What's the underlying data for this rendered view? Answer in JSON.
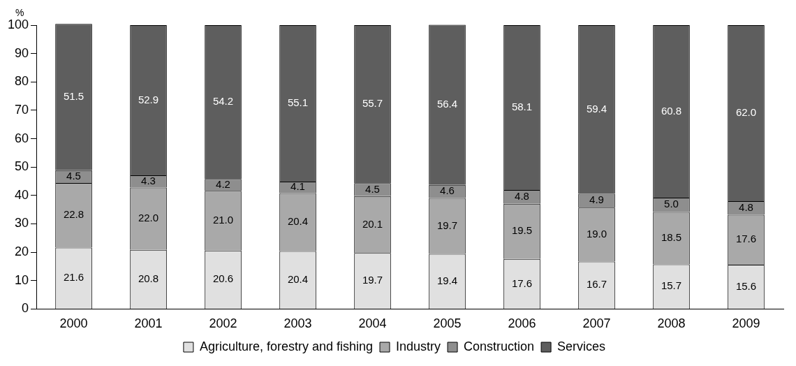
{
  "chart_data": {
    "type": "bar",
    "stacked": true,
    "ylabel": "%",
    "categories": [
      "2000",
      "2001",
      "2002",
      "2003",
      "2004",
      "2005",
      "2006",
      "2007",
      "2008",
      "2009"
    ],
    "series": [
      {
        "name": "Agriculture, forestry and fishing",
        "color": "#e0e0e0",
        "values": [
          21.6,
          20.8,
          20.6,
          20.4,
          19.7,
          19.4,
          17.6,
          16.7,
          15.7,
          15.6
        ],
        "value_labels": [
          "21.6",
          "20.8",
          "20.6",
          "20.4",
          "19.7",
          "19.4",
          "17.6",
          "16.7",
          "15.7",
          "15.6"
        ]
      },
      {
        "name": "Industry",
        "color": "#a9a9a9",
        "values": [
          22.8,
          22.0,
          21.0,
          20.4,
          20.1,
          19.7,
          19.5,
          19.0,
          18.5,
          17.6
        ],
        "value_labels": [
          "22.8",
          "22.0",
          "21.0",
          "20.4",
          "20.1",
          "19.7",
          "19.5",
          "19.0",
          "18.5",
          "17.6"
        ]
      },
      {
        "name": "Construction",
        "color": "#8e8e8e",
        "values": [
          4.5,
          4.3,
          4.2,
          4.1,
          4.5,
          4.6,
          4.8,
          4.9,
          5.0,
          4.8
        ],
        "value_labels": [
          "4.5",
          "4.3",
          "4.2",
          "4.1",
          "4.5",
          "4.6",
          "4.8",
          "4.9",
          "5.0",
          "4.8"
        ]
      },
      {
        "name": "Services",
        "color": "#5e5e5e",
        "values": [
          51.5,
          52.9,
          54.2,
          55.1,
          55.7,
          56.4,
          58.1,
          59.4,
          60.8,
          62.0
        ],
        "value_labels": [
          "51.5",
          "52.9",
          "54.2",
          "55.1",
          "55.7",
          "56.4",
          "58.1",
          "59.4",
          "60.8",
          "62.0"
        ]
      }
    ],
    "ylim": [
      0,
      100
    ],
    "yticks": [
      0,
      10,
      20,
      30,
      40,
      50,
      60,
      70,
      80,
      90,
      100
    ],
    "grid": false,
    "legend": "bottom"
  }
}
